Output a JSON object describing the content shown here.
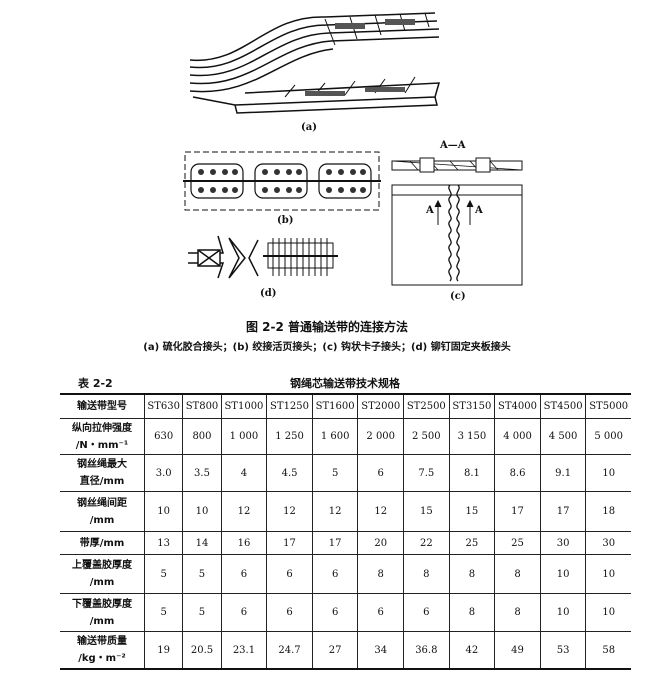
{
  "figure": {
    "labels": {
      "a": "(a)",
      "b": "(b)",
      "c": "(c)",
      "d": "(d)"
    },
    "section_label": "A—A",
    "arrow_label_left": "A",
    "arrow_label_right": "A",
    "caption": "图 2-2   普通输送带的连接方法",
    "subcaption": "(a) 硫化胶合接头；(b) 绞接活页接头；(c) 钩状卡子接头；(d) 铆钉固定夹板接头"
  },
  "table": {
    "number": "表 2-2",
    "title": "钢绳芯输送带技术规格",
    "rows": [
      {
        "label": [
          "输送带型号"
        ],
        "values": [
          "ST630",
          "ST800",
          "ST1000",
          "ST1250",
          "ST1600",
          "ST2000",
          "ST2500",
          "ST3150",
          "ST4000",
          "ST4500",
          "ST5000"
        ]
      },
      {
        "label": [
          "纵向拉伸强度",
          "/N・mm⁻¹"
        ],
        "values": [
          "630",
          "800",
          "1 000",
          "1 250",
          "1 600",
          "2 000",
          "2 500",
          "3 150",
          "4 000",
          "4 500",
          "5 000"
        ]
      },
      {
        "label": [
          "钢丝绳最大",
          "直径/mm"
        ],
        "values": [
          "3.0",
          "3.5",
          "4",
          "4.5",
          "5",
          "6",
          "7.5",
          "8.1",
          "8.6",
          "9.1",
          "10"
        ]
      },
      {
        "label": [
          "钢丝绳间距",
          "/mm"
        ],
        "values": [
          "10",
          "10",
          "12",
          "12",
          "12",
          "12",
          "15",
          "15",
          "17",
          "17",
          "18"
        ]
      },
      {
        "label": [
          "带厚/mm"
        ],
        "values": [
          "13",
          "14",
          "16",
          "17",
          "17",
          "20",
          "22",
          "25",
          "25",
          "30",
          "30"
        ]
      },
      {
        "label": [
          "上覆盖胶厚度",
          "/mm"
        ],
        "values": [
          "5",
          "5",
          "6",
          "6",
          "6",
          "8",
          "8",
          "8",
          "8",
          "10",
          "10"
        ]
      },
      {
        "label": [
          "下覆盖胶厚度",
          "/mm"
        ],
        "values": [
          "5",
          "5",
          "6",
          "6",
          "6",
          "6",
          "6",
          "8",
          "8",
          "10",
          "10"
        ]
      },
      {
        "label": [
          "输送带质量",
          "/kg・m⁻²"
        ],
        "values": [
          "19",
          "20.5",
          "23.1",
          "24.7",
          "27",
          "34",
          "36.8",
          "42",
          "49",
          "53",
          "58"
        ]
      }
    ]
  }
}
